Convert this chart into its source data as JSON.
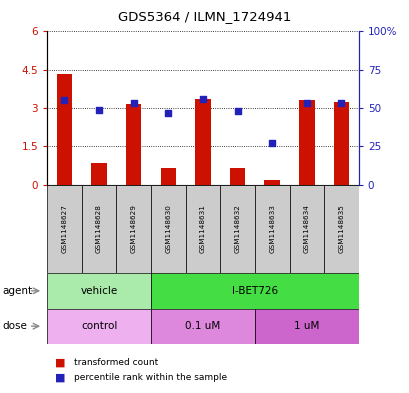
{
  "title": "GDS5364 / ILMN_1724941",
  "samples": [
    "GSM1148627",
    "GSM1148628",
    "GSM1148629",
    "GSM1148630",
    "GSM1148631",
    "GSM1148632",
    "GSM1148633",
    "GSM1148634",
    "GSM1148635"
  ],
  "red_values": [
    4.35,
    0.85,
    3.15,
    0.65,
    3.35,
    0.65,
    0.2,
    3.3,
    3.25
  ],
  "blue_percentiles": [
    55,
    49,
    53,
    47,
    56,
    48,
    27,
    53,
    53
  ],
  "ylim_left": [
    0,
    6
  ],
  "ylim_right": [
    0,
    100
  ],
  "left_ticks": [
    0,
    1.5,
    3.0,
    4.5,
    6
  ],
  "right_ticks": [
    0,
    25,
    50,
    75,
    100
  ],
  "left_tick_labels": [
    "0",
    "1.5",
    "3",
    "4.5",
    "6"
  ],
  "right_tick_labels": [
    "0",
    "25",
    "50",
    "75",
    "100%"
  ],
  "agent_labels": [
    {
      "text": "vehicle",
      "start": 0,
      "end": 3,
      "color": "#AAEAAA"
    },
    {
      "text": "I-BET726",
      "start": 3,
      "end": 9,
      "color": "#44DD44"
    }
  ],
  "dose_labels": [
    {
      "text": "control",
      "start": 0,
      "end": 3,
      "color": "#EEB0EE"
    },
    {
      "text": "0.1 uM",
      "start": 3,
      "end": 6,
      "color": "#DD88DD"
    },
    {
      "text": "1 uM",
      "start": 6,
      "end": 9,
      "color": "#CC66CC"
    }
  ],
  "bar_color": "#CC1100",
  "dot_color": "#2222BB",
  "label_color_red": "#CC1100",
  "label_color_blue": "#2222BB",
  "sample_box_color": "#CCCCCC"
}
